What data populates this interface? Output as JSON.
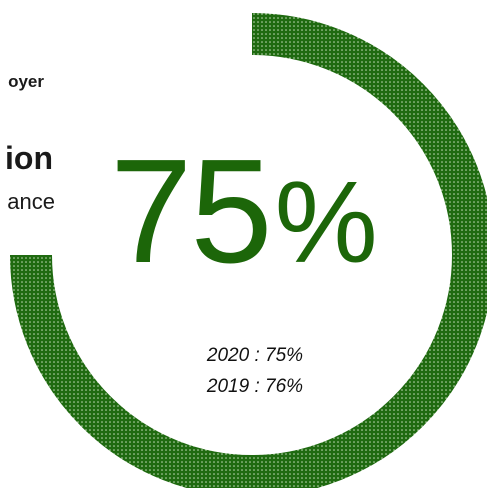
{
  "behind_text": {
    "employer": "oyer",
    "title": "ion",
    "subtitle": "ance"
  },
  "chart_data": {
    "type": "pie",
    "kind": "donut-gauge",
    "value": 75,
    "max": 100,
    "value_label": "75",
    "unit": "%",
    "comparisons": [
      {
        "label": "2020 : 75%",
        "year": "2020",
        "value": 75
      },
      {
        "label": "2019 : 76%",
        "year": "2019",
        "value": 76
      }
    ],
    "colors": {
      "arc": "#1f6a10",
      "text": "#1c6609"
    }
  }
}
